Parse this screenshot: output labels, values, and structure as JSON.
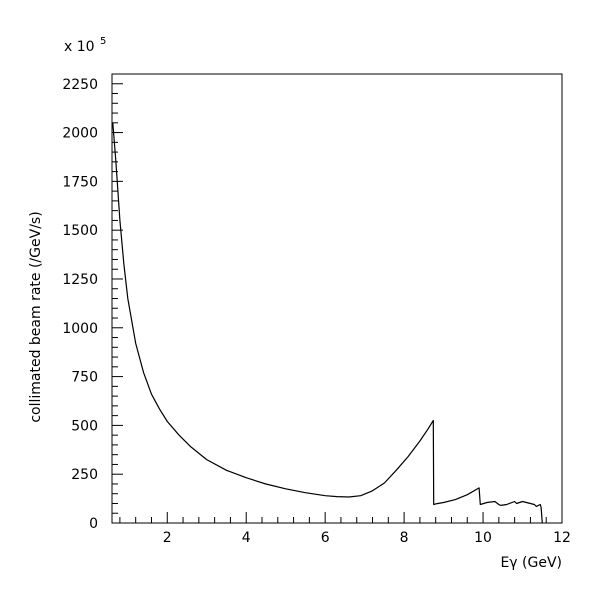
{
  "chart_data": {
    "type": "line",
    "title": "",
    "xlabel": "Eγ (GeV)",
    "ylabel": "collimated beam rate (/GeV/s)",
    "y_multiplier_label": "x 10",
    "y_multiplier_exponent": "5",
    "xlim": [
      0.6,
      12
    ],
    "ylim": [
      0,
      2300
    ],
    "x_ticks": [
      2,
      4,
      6,
      8,
      10,
      12
    ],
    "x_tick_labels": [
      "2",
      "4",
      "6",
      "8",
      "10",
      "12"
    ],
    "y_ticks": [
      0,
      250,
      500,
      750,
      1000,
      1250,
      1500,
      1750,
      2000,
      2250
    ],
    "y_tick_labels": [
      "0",
      "250",
      "500",
      "750",
      "1000",
      "1250",
      "1500",
      "1750",
      "2000",
      "2250"
    ],
    "grid": false,
    "line_color": "#000000",
    "series": [
      {
        "x": [
          0.62,
          0.7,
          0.8,
          0.9,
          1.0,
          1.2,
          1.4,
          1.6,
          1.8,
          2.0,
          2.3,
          2.6,
          3.0,
          3.5,
          4.0,
          4.5,
          5.0,
          5.5,
          6.0,
          6.3,
          6.6,
          6.9,
          7.2,
          7.5,
          7.8,
          8.1,
          8.4,
          8.6,
          8.74,
          8.75,
          8.8,
          9.0,
          9.3,
          9.6,
          9.9,
          9.93,
          10.1,
          10.3,
          10.4,
          10.45,
          10.6,
          10.8,
          10.85,
          11.0,
          11.2,
          11.3,
          11.35,
          11.45,
          11.47,
          11.5
        ],
        "y": [
          2050,
          1850,
          1550,
          1330,
          1150,
          920,
          770,
          660,
          585,
          520,
          450,
          390,
          325,
          270,
          232,
          200,
          175,
          155,
          140,
          135,
          133,
          140,
          165,
          205,
          270,
          340,
          420,
          480,
          525,
          95,
          98,
          105,
          120,
          145,
          180,
          95,
          105,
          110,
          95,
          90,
          95,
          110,
          100,
          110,
          100,
          95,
          85,
          95,
          80,
          0
        ]
      }
    ]
  }
}
